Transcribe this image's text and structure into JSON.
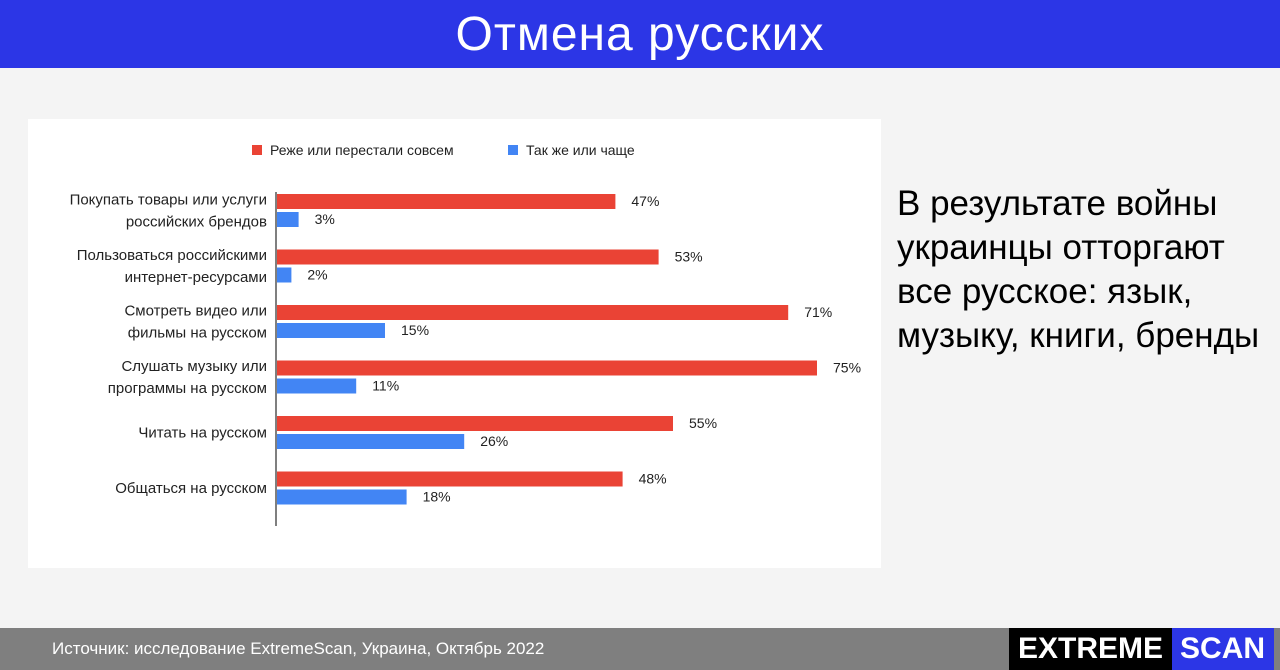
{
  "header": {
    "title": "Отмена русских"
  },
  "side": {
    "text": "В результате войны украинцы отторгают все русское: язык, музыку, книги, бренды"
  },
  "footer": {
    "source": "Источник: исследование ExtremeScan, Украина, Октябрь 2022"
  },
  "logo": {
    "part1": "EXTREME",
    "part2": "SCAN"
  },
  "colors": {
    "header_bg": "#2c36e6",
    "series_less": "#ea4335",
    "series_same": "#4285f4"
  },
  "chart_data": {
    "type": "bar",
    "orientation": "horizontal",
    "categories": [
      [
        "Покупать товары или услуги",
        "российских брендов"
      ],
      [
        "Пользоваться российскими",
        "интернет-ресурсами"
      ],
      [
        "Смотреть видео или",
        "фильмы на русском"
      ],
      [
        "Слушать музыку или",
        "программы на русском"
      ],
      [
        "Читать на русском"
      ],
      [
        "Общаться на русском"
      ]
    ],
    "series": [
      {
        "name": "Реже или перестали совсем",
        "color": "#ea4335",
        "values": [
          47,
          53,
          71,
          75,
          55,
          48
        ],
        "labels": [
          "47%",
          "53%",
          "71%",
          "75%",
          "55%",
          "48%"
        ]
      },
      {
        "name": "Так же или чаще",
        "color": "#4285f4",
        "values": [
          3,
          2,
          15,
          11,
          26,
          18
        ],
        "labels": [
          "3%",
          "2%",
          "15%",
          "11%",
          "26%",
          "18%"
        ]
      }
    ],
    "legend": "top",
    "grid": false,
    "xlim": [
      0,
      100
    ]
  }
}
